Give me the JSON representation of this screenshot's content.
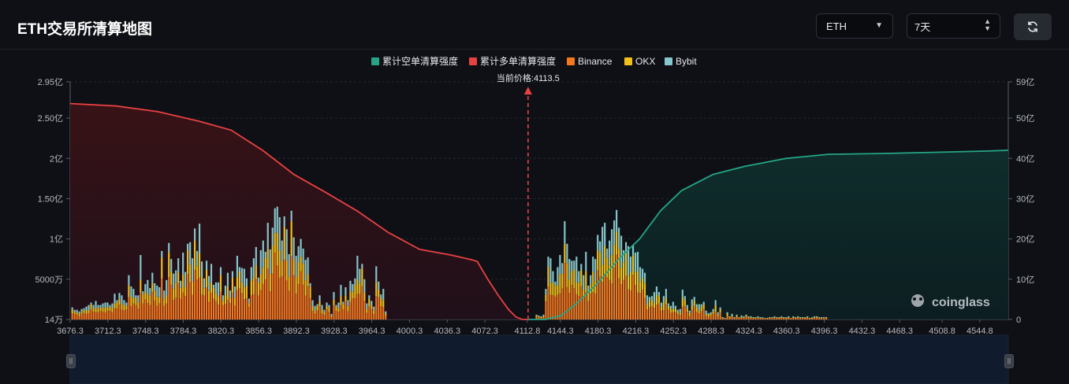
{
  "header": {
    "title": "ETH交易所清算地图",
    "coin_select": "ETH",
    "range_select": "7天"
  },
  "colors": {
    "background": "#0e1015",
    "long_line": "#e84142",
    "short_line": "#25a586",
    "binance": "#f5781f",
    "okx": "#f2c01c",
    "bybit": "#86c7cb",
    "current_price_line": "#e84142"
  },
  "chart_data": {
    "type": "bar",
    "title": "",
    "current_price_label": "当前价格:4113.5",
    "current_price": 4113.5,
    "legend_position": "top-center",
    "legend": [
      {
        "name": "累计空单清算强度",
        "color": "#25a586"
      },
      {
        "name": "累计多单清算强度",
        "color": "#e84142"
      },
      {
        "name": "Binance",
        "color": "#f5781f"
      },
      {
        "name": "OKX",
        "color": "#f2c01c"
      },
      {
        "name": "Bybit",
        "color": "#86c7cb"
      }
    ],
    "x_range": [
      3676.3,
      4572
    ],
    "x_ticks": [
      "3676.3",
      "3712.3",
      "3748.3",
      "3784.3",
      "3820.3",
      "3856.3",
      "3892.3",
      "3928.3",
      "3964.3",
      "4000.3",
      "4036.3",
      "4072.3",
      "4112.8",
      "4144.3",
      "4180.3",
      "4216.3",
      "4252.3",
      "4288.3",
      "4324.3",
      "4360.3",
      "4396.3",
      "4432.3",
      "4468.3",
      "4508.8",
      "4544.8"
    ],
    "left_axis": {
      "ticks": [
        "14万",
        "5000万",
        "1亿",
        "1.50亿",
        "2亿",
        "2.50亿",
        "2.95亿"
      ],
      "ylim": [
        0,
        2.95
      ],
      "unit": "亿"
    },
    "right_axis": {
      "ticks": [
        "0",
        "10亿",
        "20亿",
        "30亿",
        "40亿",
        "50亿",
        "59亿"
      ],
      "ylim": [
        0,
        59
      ],
      "unit": "亿"
    },
    "grid": true,
    "bars_x_step": 2.25,
    "bars_total_left": [
      0.15,
      0.12,
      0.12,
      0.1,
      0.13,
      0.14,
      0.16,
      0.18,
      0.21,
      0.18,
      0.23,
      0.18,
      0.18,
      0.2,
      0.21,
      0.21,
      0.18,
      0.2,
      0.32,
      0.24,
      0.33,
      0.3,
      0.24,
      0.21,
      0.55,
      0.41,
      0.38,
      0.3,
      0.3,
      0.8,
      0.35,
      0.44,
      0.49,
      0.39,
      0.58,
      0.45,
      0.42,
      0.4,
      0.85,
      0.36,
      0.49,
      0.95,
      0.75,
      0.57,
      0.61,
      0.76,
      0.48,
      0.83,
      0.59,
      0.94,
      0.96,
      0.76,
      1.13,
      0.85,
      1.19,
      0.72,
      0.51,
      0.73,
      0.54,
      0.69,
      0.43,
      0.46,
      0.46,
      0.65,
      0.3,
      0.42,
      0.58,
      0.36,
      0.6,
      0.41,
      0.79,
      0.65,
      0.64,
      0.63,
      0.51,
      0.26,
      0.65,
      0.76,
      0.9,
      0.52,
      0.86,
      0.98,
      0.84,
      1.2,
      0.87,
      1.14,
      1.38,
      1.4,
      1.27,
      0.98,
      1.28,
      1.12,
      0.81,
      1.35,
      1.02,
      0.79,
      0.91,
      1.0,
      0.88,
      0.74,
      0.77,
      0.45,
      0.24,
      0.17,
      0.19,
      0.3,
      0.18,
      0.12,
      0.21,
      0.18,
      0.07,
      0.34,
      0.18,
      0.21,
      0.43,
      0.22,
      0.4,
      0.24,
      0.48,
      0.44,
      0.51,
      0.79,
      0.63,
      0.69,
      0.5,
      0.2,
      0.3,
      0.23,
      0.16,
      0.66,
      0.47,
      0.31,
      0.38,
      0.1
    ],
    "bars_total_right": [
      0.06,
      0.05,
      0.04,
      0.06,
      0.38,
      0.78,
      0.76,
      0.6,
      0.47,
      0.65,
      0.8,
      0.7,
      1.22,
      0.94,
      0.75,
      0.73,
      0.73,
      0.78,
      0.6,
      0.69,
      0.55,
      0.84,
      0.42,
      0.55,
      0.78,
      0.75,
      1.05,
      0.97,
      1.15,
      1.2,
      0.88,
      0.98,
      1.12,
      1.23,
      1.36,
      1.14,
      1.04,
      0.86,
      0.96,
      0.91,
      0.78,
      0.93,
      0.83,
      0.84,
      0.65,
      0.63,
      0.58,
      0.3,
      0.28,
      0.29,
      0.34,
      0.41,
      0.34,
      0.21,
      0.29,
      0.38,
      0.2,
      0.17,
      0.22,
      0.17,
      0.12,
      0.13,
      0.37,
      0.29,
      0.18,
      0.11,
      0.25,
      0.28,
      0.19,
      0.19,
      0.19,
      0.22,
      0.11,
      0.08,
      0.09,
      0.13,
      0.24,
      0.09,
      0.15,
      0.03,
      0.02,
      0.09,
      0.04,
      0.07,
      0.03,
      0.06,
      0.03,
      0.05,
      0.04,
      0.06,
      0.04,
      0.04,
      0.03,
      0.03,
      0.04,
      0.03,
      0.03,
      0.02,
      0.02,
      0.03,
      0.03,
      0.04,
      0.03,
      0.03,
      0.04,
      0.03,
      0.03,
      0.04,
      0.02,
      0.04,
      0.03,
      0.04,
      0.03,
      0.03,
      0.03,
      0.04,
      0.02,
      0.03,
      0.04,
      0.04,
      0.03,
      0.03,
      0.03,
      0.03
    ],
    "long_cumulative_curve": {
      "x": [
        3676.3,
        3720,
        3760,
        3800,
        3830,
        3860,
        3890,
        3920,
        3950,
        3980,
        4010,
        4040,
        4060,
        4065,
        4075,
        4085,
        4095,
        4102,
        4108,
        4112.8
      ],
      "y": [
        2.68,
        2.65,
        2.58,
        2.46,
        2.35,
        2.1,
        1.8,
        1.58,
        1.35,
        1.08,
        0.87,
        0.8,
        0.74,
        0.72,
        0.5,
        0.3,
        0.12,
        0.03,
        0.0,
        0.0
      ]
    },
    "short_cumulative_curve": {
      "x": [
        4112.8,
        4130,
        4145,
        4160,
        4180,
        4200,
        4220,
        4240,
        4260,
        4290,
        4320,
        4360,
        4400,
        4450,
        4500,
        4550,
        4572
      ],
      "y": [
        0.0,
        0.0,
        1.0,
        4.0,
        9.0,
        15.0,
        20.0,
        27.0,
        32.0,
        36.0,
        38.0,
        40.0,
        41.0,
        41.2,
        41.5,
        41.8,
        42.0
      ]
    }
  },
  "watermark": "coinglass"
}
